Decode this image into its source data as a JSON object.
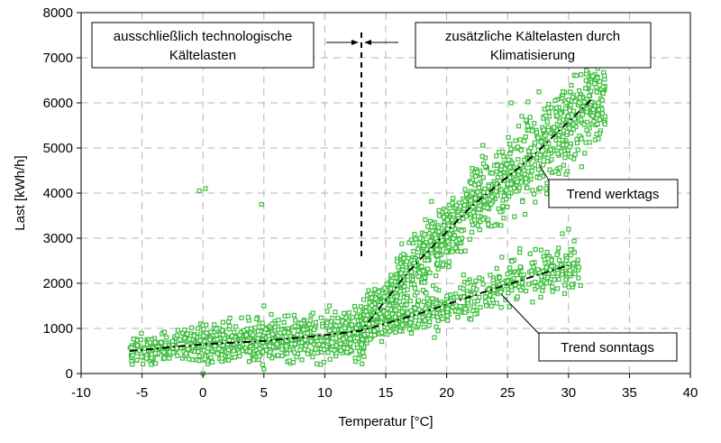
{
  "chart_data": {
    "type": "scatter",
    "xlabel": "Temperatur [°C]",
    "ylabel": "Last [kWh/h]",
    "xlim": [
      -10,
      40
    ],
    "ylim": [
      0,
      8000
    ],
    "xticks": [
      -10,
      -5,
      0,
      5,
      10,
      15,
      20,
      25,
      30,
      35,
      40
    ],
    "yticks": [
      0,
      1000,
      2000,
      3000,
      4000,
      5000,
      6000,
      7000,
      8000
    ],
    "grid": true,
    "marker": "hollow-square",
    "colors": {
      "points": "#3fbf3f",
      "trend": "#000000",
      "grid": "#b4b4b4"
    },
    "divider_temperature": 13,
    "annotations": {
      "left_box": [
        "ausschließlich technologische",
        "Kältelasten"
      ],
      "right_box": [
        "zusätzliche Kältelasten durch",
        "Klimatisierung"
      ],
      "workday_label": "Trend werktags",
      "sunday_label": "Trend sonntags"
    },
    "trend_lines": [
      {
        "label": "Trend werktags",
        "points": [
          [
            -6,
            500
          ],
          [
            0,
            650
          ],
          [
            5,
            720
          ],
          [
            10,
            850
          ],
          [
            13,
            950
          ],
          [
            17,
            2300
          ],
          [
            22,
            3700
          ],
          [
            27,
            4800
          ],
          [
            32,
            6100
          ]
        ]
      },
      {
        "label": "Trend sonntags",
        "points": [
          [
            -6,
            500
          ],
          [
            0,
            650
          ],
          [
            5,
            720
          ],
          [
            10,
            850
          ],
          [
            13,
            950
          ],
          [
            18,
            1350
          ],
          [
            23,
            1800
          ],
          [
            30,
            2400
          ]
        ]
      }
    ],
    "point_clouds": [
      {
        "x_range": [
          -6,
          14
        ],
        "base": "low",
        "count": 900,
        "spread": 200
      },
      {
        "x_range": [
          13,
          33
        ],
        "base": "workday",
        "count": 1100,
        "spread": 450
      },
      {
        "x_range": [
          13,
          31
        ],
        "base": "sunday",
        "count": 500,
        "spread": 250
      }
    ],
    "outliers": [
      [
        -0.3,
        4050
      ],
      [
        0.2,
        4100
      ],
      [
        4.8,
        3750
      ],
      [
        5,
        1500
      ],
      [
        25.3,
        6000
      ],
      [
        29.8,
        6000
      ],
      [
        30.2,
        5950
      ],
      [
        31.5,
        5800
      ],
      [
        32.5,
        5850
      ],
      [
        33,
        5700
      ],
      [
        29.5,
        3100
      ],
      [
        30,
        3200
      ],
      [
        22,
        1200
      ],
      [
        19,
        800
      ],
      [
        27,
        2450
      ],
      [
        31,
        1950
      ],
      [
        0,
        0
      ],
      [
        5,
        100
      ]
    ]
  }
}
